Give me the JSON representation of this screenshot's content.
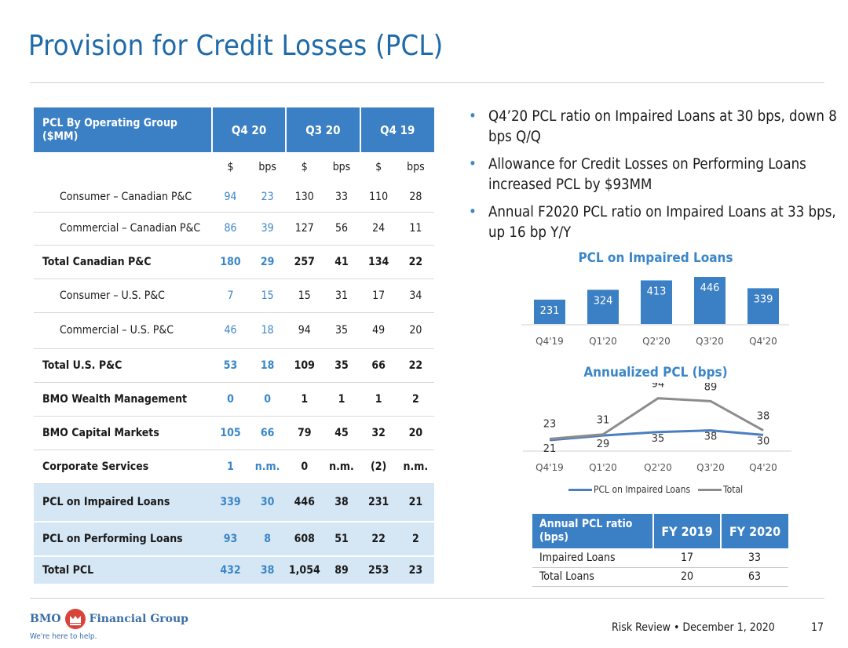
{
  "title": "Provision for Credit Losses (PCL)",
  "table": {
    "header_label": "PCL By Operating Group ($MM)",
    "periods": [
      "Q4 20",
      "Q3 20",
      "Q4 19"
    ],
    "units": [
      "$",
      "bps",
      "$",
      "bps",
      "$",
      "bps"
    ],
    "rows": [
      {
        "label": "Consumer – Canadian P&C",
        "indent": true,
        "bold": false,
        "shade": false,
        "values": [
          "94",
          "23",
          "130",
          "33",
          "110",
          "28"
        ]
      },
      {
        "label": "Commercial – Canadian P&C",
        "indent": true,
        "bold": false,
        "shade": false,
        "values": [
          "86",
          "39",
          "127",
          "56",
          "24",
          "11"
        ]
      },
      {
        "label": "Total Canadian P&C",
        "indent": false,
        "bold": true,
        "shade": false,
        "values": [
          "180",
          "29",
          "257",
          "41",
          "134",
          "22"
        ]
      },
      {
        "label": "Consumer – U.S. P&C",
        "indent": true,
        "bold": false,
        "shade": false,
        "values": [
          "7",
          "15",
          "15",
          "31",
          "17",
          "34"
        ]
      },
      {
        "label": "Commercial – U.S. P&C",
        "indent": true,
        "bold": false,
        "shade": false,
        "values": [
          "46",
          "18",
          "94",
          "35",
          "49",
          "20"
        ]
      },
      {
        "label": "Total U.S. P&C",
        "indent": false,
        "bold": true,
        "shade": false,
        "values": [
          "53",
          "18",
          "109",
          "35",
          "66",
          "22"
        ]
      },
      {
        "label": "BMO Wealth Management",
        "indent": false,
        "bold": true,
        "shade": false,
        "values": [
          "0",
          "0",
          "1",
          "1",
          "1",
          "2"
        ]
      },
      {
        "label": "BMO Capital Markets",
        "indent": false,
        "bold": true,
        "shade": false,
        "values": [
          "105",
          "66",
          "79",
          "45",
          "32",
          "20"
        ]
      },
      {
        "label": "Corporate Services",
        "indent": false,
        "bold": true,
        "shade": false,
        "values": [
          "1",
          "n.m.",
          "0",
          "n.m.",
          "(2)",
          "n.m."
        ]
      },
      {
        "label": "PCL on Impaired Loans",
        "indent": false,
        "bold": true,
        "shade": true,
        "values": [
          "339",
          "30",
          "446",
          "38",
          "231",
          "21"
        ]
      },
      {
        "label": "PCL on Performing Loans",
        "indent": false,
        "bold": true,
        "shade": true,
        "values": [
          "93",
          "8",
          "608",
          "51",
          "22",
          "2"
        ]
      },
      {
        "label": "Total PCL",
        "indent": false,
        "bold": true,
        "shade": true,
        "values": [
          "432",
          "38",
          "1,054",
          "89",
          "253",
          "23"
        ]
      }
    ]
  },
  "bullets": [
    "Q4’20 PCL ratio on Impaired Loans at 30 bps, down 8 bps Q/Q",
    "Allowance for Credit Losses on Performing Loans increased PCL by $93MM",
    "Annual F2020 PCL ratio on Impaired Loans at 33 bps, up 16 bp Y/Y"
  ],
  "chart_data": [
    {
      "type": "bar",
      "title": "PCL on Impaired Loans",
      "categories": [
        "Q4'19",
        "Q1'20",
        "Q2'20",
        "Q3'20",
        "Q4'20"
      ],
      "values": [
        231,
        324,
        413,
        446,
        339
      ],
      "color": "#3b7fc4",
      "xlabel": "",
      "ylabel": "",
      "ylim": [
        0,
        446
      ]
    },
    {
      "type": "line",
      "title": "Annualized PCL (bps)",
      "categories": [
        "Q4'19",
        "Q1'20",
        "Q2'20",
        "Q3'20",
        "Q4'20"
      ],
      "series": [
        {
          "name": "PCL on Impaired Loans",
          "color": "#4a7fc1",
          "values": [
            21,
            29,
            35,
            38,
            30
          ]
        },
        {
          "name": "Total",
          "color": "#8c8c8c",
          "values": [
            23,
            31,
            94,
            89,
            38
          ]
        }
      ],
      "ylim": [
        0,
        100
      ]
    }
  ],
  "annual": {
    "header_label": "Annual PCL ratio (bps)",
    "columns": [
      "FY 2019",
      "FY 2020"
    ],
    "rows": [
      {
        "label": "Impaired Loans",
        "values": [
          "17",
          "33"
        ]
      },
      {
        "label": "Total Loans",
        "values": [
          "20",
          "63"
        ]
      }
    ]
  },
  "footer": {
    "brand": "BMO",
    "brand_suffix": "Financial Group",
    "tagline": "We're here to help.",
    "text": "Risk Review • December 1, 2020",
    "page": "17"
  },
  "colors": {
    "accent": "#3b7fc4",
    "title": "#1f6aa8",
    "shade": "#d5e6f5",
    "logo_red": "#d9443a"
  }
}
